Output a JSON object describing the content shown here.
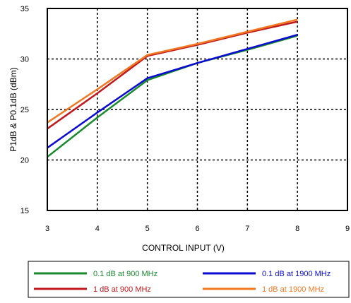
{
  "chart_data": {
    "type": "line",
    "title": "",
    "xlabel": "CONTROL INPUT (V)",
    "ylabel": "P1dB & P0.1dB (dBm)",
    "xlim": [
      3,
      9
    ],
    "ylim": [
      15,
      35
    ],
    "x_ticks": [
      "3",
      "4",
      "5",
      "6",
      "7",
      "8",
      "9"
    ],
    "y_ticks": [
      "15",
      "20",
      "25",
      "30",
      "35"
    ],
    "grid": "dotted",
    "legend_position": "bottom",
    "series": [
      {
        "name": "0.1 dB at 900 MHz",
        "color": "#1a8a2e",
        "x": [
          3,
          4,
          5,
          6,
          7,
          8
        ],
        "y": [
          20.3,
          24.2,
          27.9,
          29.6,
          30.9,
          32.3
        ]
      },
      {
        "name": "0.1 dB at 1900 MHz",
        "color": "#0a0ad2",
        "x": [
          3,
          4,
          5,
          6,
          7,
          8
        ],
        "y": [
          21.2,
          24.7,
          28.1,
          29.6,
          31.0,
          32.4
        ]
      },
      {
        "name": "1 dB at 900 MHz",
        "color": "#c0181e",
        "x": [
          3,
          4,
          5,
          6,
          7,
          8
        ],
        "y": [
          23.1,
          26.6,
          30.3,
          31.4,
          32.6,
          33.7
        ]
      },
      {
        "name": "1 dB at 1900 MHz",
        "color": "#f07820",
        "x": [
          3,
          4,
          5,
          6,
          7,
          8
        ],
        "y": [
          23.7,
          27.0,
          30.4,
          31.5,
          32.7,
          33.9
        ]
      }
    ]
  }
}
